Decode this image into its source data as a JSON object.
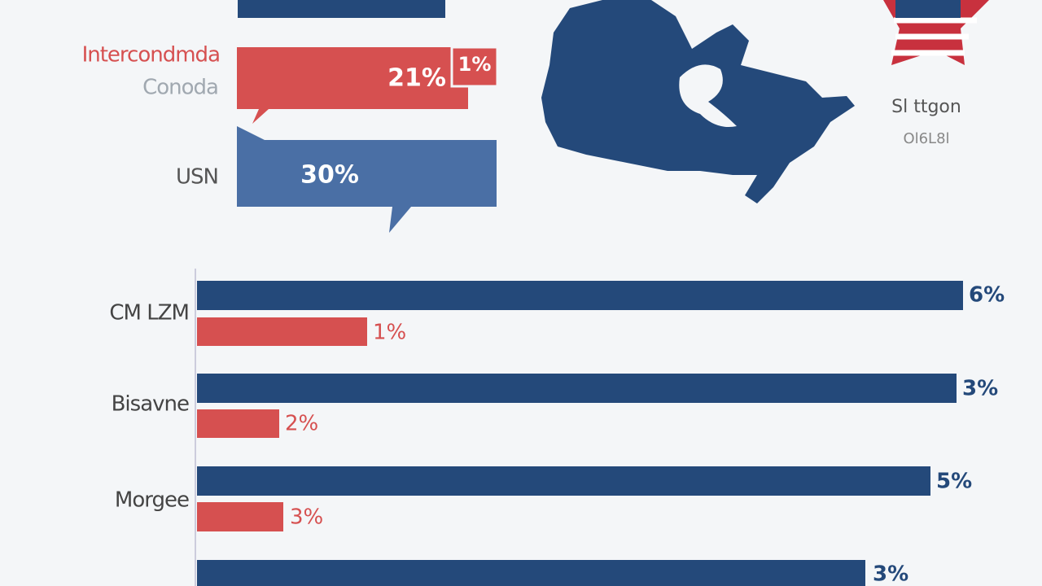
{
  "header": {
    "title": "Intercondmda",
    "subtitle": "Conoda"
  },
  "callouts": [
    {
      "label": "USN",
      "value": "30%"
    }
  ],
  "canada_callout": {
    "value": "21%",
    "side_value": "1%"
  },
  "map_panel": {
    "label": "Sl ttgon",
    "sublabel": "Ol6L8l"
  },
  "rows": [
    {
      "label": "CM LZM",
      "bars": [
        "6%",
        "1%"
      ]
    },
    {
      "label": "Bisavne",
      "bars": [
        "3%",
        "2%"
      ]
    },
    {
      "label": "Morgee",
      "bars": [
        "5%",
        "3%"
      ]
    },
    {
      "bars": [
        "3%"
      ]
    }
  ]
}
